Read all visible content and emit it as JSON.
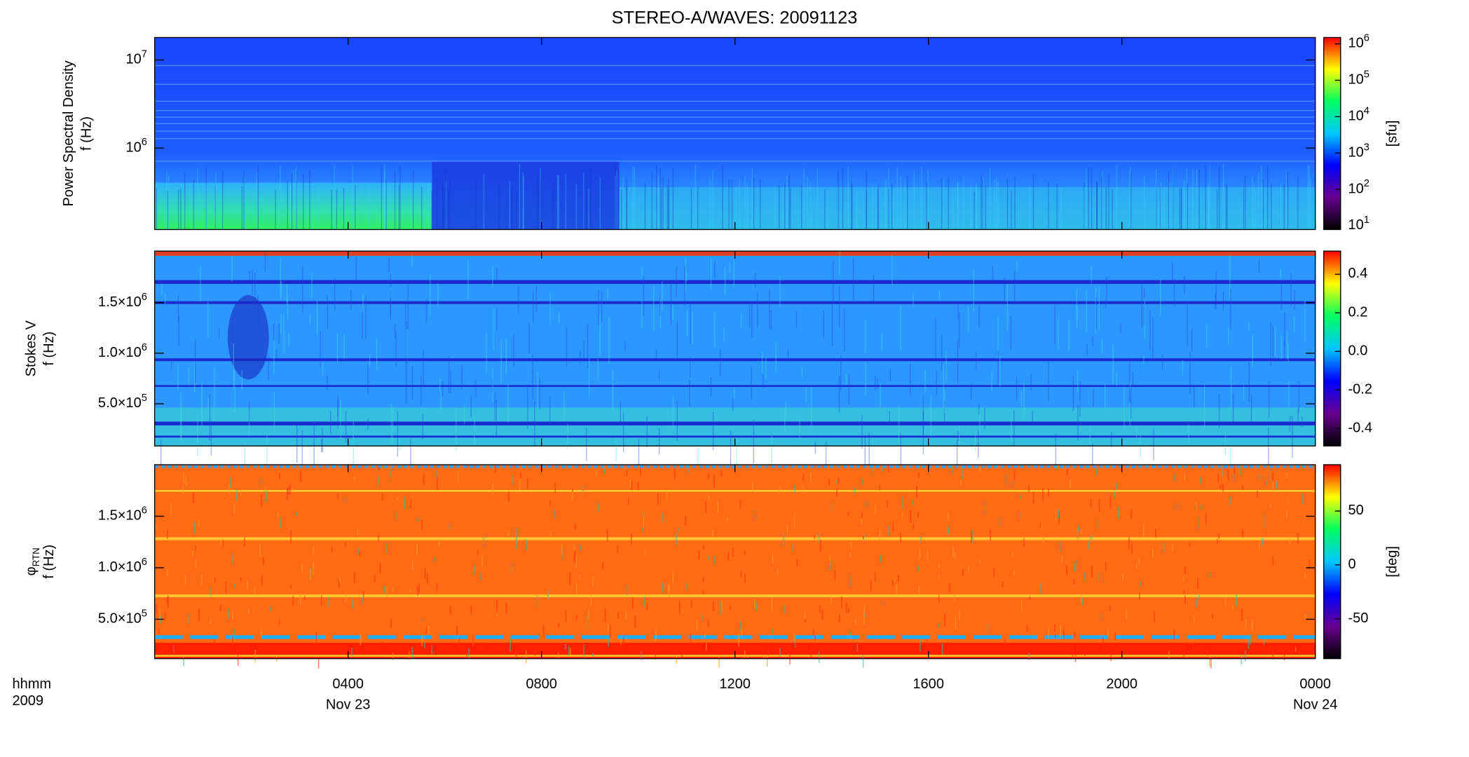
{
  "chart_data": [
    {
      "type": "spectrogram",
      "title": "STEREO-A/WAVES: 20091123",
      "ylabel": [
        "Power Spectral Density",
        "f (Hz)"
      ],
      "ylog": true,
      "ylim": [
        119000,
        18000000
      ],
      "yticks": [
        {
          "value": 1000000,
          "label": "10^6"
        },
        {
          "value": 10000000,
          "label": "10^7"
        }
      ],
      "zlabel": "[sfu]",
      "zlog": true,
      "zlim": [
        7.9,
        1500000
      ],
      "zticks": [
        {
          "value": 10,
          "label": "10^1"
        },
        {
          "value": 100,
          "label": "10^2"
        },
        {
          "value": 1000,
          "label": "10^3"
        },
        {
          "value": 10000,
          "label": "10^4"
        },
        {
          "value": 100000,
          "label": "10^5"
        },
        {
          "value": 1000000,
          "label": "10^6"
        }
      ],
      "colormap": [
        "#000000",
        "#6a0090",
        "#0000ff",
        "#00c8ff",
        "#00ff60",
        "#ffff00",
        "#ff0000"
      ]
    },
    {
      "type": "spectrogram",
      "ylabel": [
        "Stokes V",
        "f (Hz)"
      ],
      "ylog": false,
      "ylim": [
        83000,
        2010000
      ],
      "yticks": [
        {
          "value": 500000,
          "label": "5.0×10^5"
        },
        {
          "value": 1000000,
          "label": "1.0×10^6"
        },
        {
          "value": 1500000,
          "label": "1.5×10^6"
        }
      ],
      "zlog": false,
      "zlim": [
        -0.49,
        0.52
      ],
      "zticks": [
        -0.4,
        -0.2,
        {
          "value": 0,
          "label": "0.0"
        },
        0.2,
        0.4
      ],
      "colormap": [
        "#000000",
        "#6a0090",
        "#0000ff",
        "#00c8ff",
        "#00ff60",
        "#ffff00",
        "#ff0000"
      ]
    },
    {
      "type": "spectrogram",
      "ylabel": [
        "φ_RTN",
        "f (Hz)"
      ],
      "ylog": false,
      "ylim": [
        118000,
        2000000
      ],
      "yticks": [
        {
          "value": 500000,
          "label": "5.0×10^5"
        },
        {
          "value": 1000000,
          "label": "1.0×10^6"
        },
        {
          "value": 1500000,
          "label": "1.5×10^6"
        }
      ],
      "zlabel": "[deg]",
      "zlog": false,
      "zlim": [
        -87,
        93
      ],
      "zticks": [
        -50,
        0,
        50
      ],
      "colormap": [
        "#000000",
        "#6a0090",
        "#0000ff",
        "#00c8ff",
        "#00ff60",
        "#ffff00",
        "#ff0000"
      ],
      "xlim": [
        0,
        24
      ],
      "xticks": [
        {
          "value": 4,
          "label": "0400"
        },
        {
          "value": 8,
          "label": "0800"
        },
        {
          "value": 12,
          "label": "1200"
        },
        {
          "value": 16,
          "label": "1600"
        },
        {
          "value": 20,
          "label": "2000"
        },
        {
          "value": 24,
          "label": "0000"
        }
      ],
      "xsublabels": [
        {
          "value": 4,
          "label": "Nov 23"
        },
        {
          "value": 24,
          "label": "Nov 24"
        }
      ],
      "xlabel": [
        "hhmm",
        "2009"
      ]
    }
  ]
}
